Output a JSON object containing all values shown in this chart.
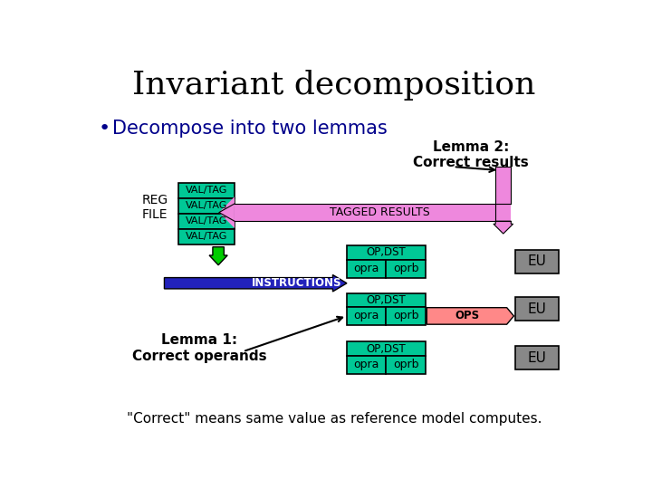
{
  "title": "Invariant decomposition",
  "bullet": "Decompose into two lemmas",
  "slide_bg": "#ffffff",
  "title_color": "#000000",
  "bullet_color": "#00008B",
  "cyan_color": "#00c896",
  "pink_color": "#ee88dd",
  "pink_light": "#ee88dd",
  "green_arrow_color": "#00cc00",
  "blue_arrow_color": "#2222bb",
  "gray_eu_color": "#888888",
  "ops_color": "#ff8888",
  "bottom_text": "\"Correct\" means same value as reference model computes.",
  "lemma2_text": "Lemma 2:\nCorrect results",
  "lemma1_text": "Lemma 1:\nCorrect operands",
  "tagged_text": "TAGGED RESULTS",
  "instr_text": "INSTRUCTIONS"
}
